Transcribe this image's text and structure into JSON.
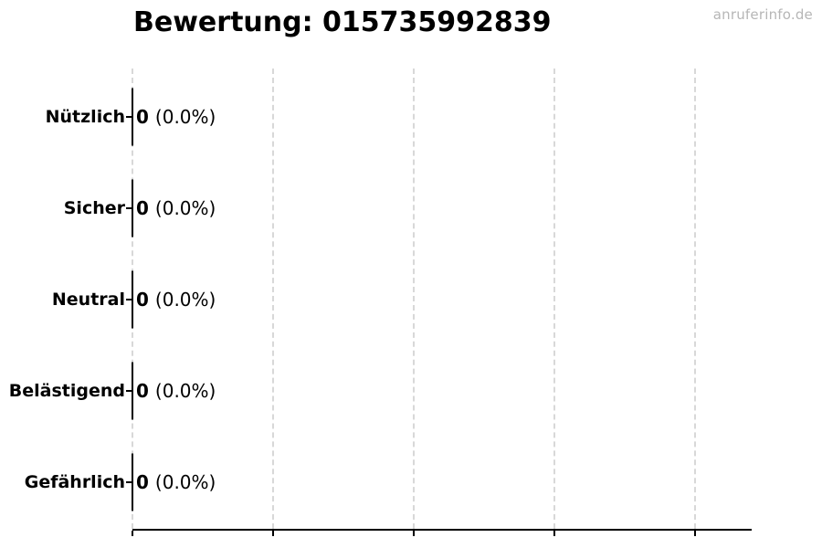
{
  "header": {
    "title": "Bewertung: 015735992839",
    "watermark": "anruferinfo.de"
  },
  "colors": {
    "text": "#000000",
    "axis": "#000000",
    "bar_border": "#000000",
    "grid": "#d8d8d8",
    "watermark": "#b6b6b6",
    "background": "#ffffff"
  },
  "chart_data": {
    "type": "bar",
    "orientation": "horizontal",
    "title": "Bewertung: 015735992839",
    "categories": [
      "Nützlich",
      "Sicher",
      "Neutral",
      "Belästigend",
      "Gefährlich"
    ],
    "values": [
      0,
      0,
      0,
      0,
      0
    ],
    "percentages": [
      0.0,
      0.0,
      0.0,
      0.0,
      0.0
    ],
    "rows": [
      {
        "label": "Nützlich",
        "value": "0",
        "percent": "(0.0%)"
      },
      {
        "label": "Sicher",
        "value": "0",
        "percent": "(0.0%)"
      },
      {
        "label": "Neutral",
        "value": "0",
        "percent": "(0.0%)"
      },
      {
        "label": "Belästigend",
        "value": "0",
        "percent": "(0.0%)"
      },
      {
        "label": "Gefährlich",
        "value": "0",
        "percent": "(0.0%)"
      }
    ],
    "xlabel": "",
    "ylabel": "",
    "x_tick_labels": [],
    "x_gridline_count": 5,
    "grid": true,
    "grid_style": "dashed",
    "legend": false,
    "bar_fill": "none"
  }
}
